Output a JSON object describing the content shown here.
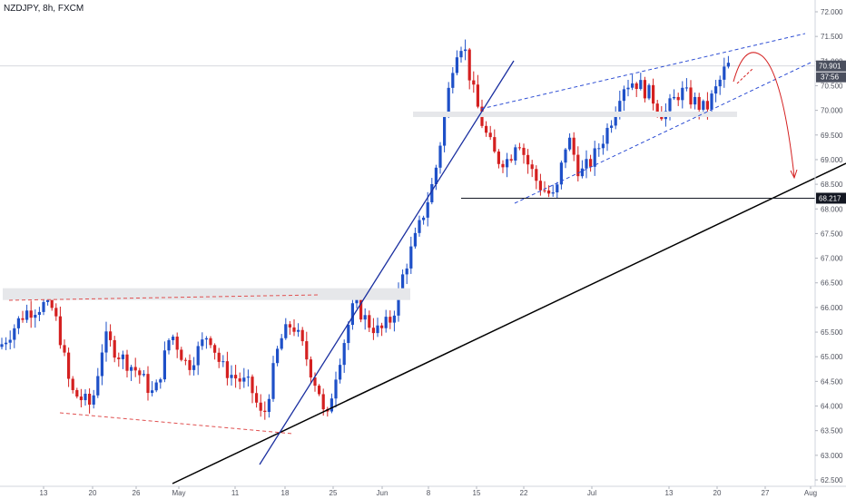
{
  "chart_data": {
    "type": "candlestick",
    "title": "NZDJPY, 8h, FXCM",
    "symbol": "NZDJPY",
    "interval": "8h",
    "source": "FXCM",
    "ylim": [
      62.5,
      72.0
    ],
    "y_ticks": [
      "72.000",
      "71.500",
      "71.000",
      "70.500",
      "70.000",
      "69.500",
      "69.000",
      "68.500",
      "68.000",
      "67.500",
      "67.000",
      "66.500",
      "66.000",
      "65.500",
      "65.000",
      "64.500",
      "64.000",
      "63.500",
      "63.000",
      "62.500"
    ],
    "x_ticks": [
      "13",
      "20",
      "26",
      "May",
      "11",
      "18",
      "25",
      "Jun",
      "8",
      "15",
      "22",
      "Jul",
      "13",
      "20",
      "27",
      "Aug"
    ],
    "last_price": "70.901",
    "countdown": "37:56",
    "level_label": "68.217",
    "level_value": 68.217,
    "colors": {
      "up": "#1e50c8",
      "down": "#d42020",
      "grid": "#ebecef",
      "axis_text": "#50535e"
    },
    "price_path": [
      [
        0,
        65.2
      ],
      [
        6,
        65.9
      ],
      [
        12,
        66.1
      ],
      [
        14,
        65.6
      ],
      [
        17,
        64.3
      ],
      [
        22,
        64.0
      ],
      [
        25,
        65.4
      ],
      [
        29,
        65.0
      ],
      [
        33,
        64.7
      ],
      [
        37,
        64.2
      ],
      [
        41,
        65.5
      ],
      [
        45,
        64.8
      ],
      [
        48,
        65.2
      ],
      [
        50,
        65.5
      ],
      [
        53,
        64.8
      ],
      [
        56,
        64.6
      ],
      [
        60,
        64.4
      ],
      [
        63,
        63.7
      ],
      [
        67,
        65.3
      ],
      [
        70,
        65.7
      ],
      [
        73,
        65.1
      ],
      [
        75,
        64.6
      ],
      [
        77,
        64.2
      ],
      [
        78,
        63.5
      ],
      [
        80,
        64.5
      ],
      [
        83,
        65.5
      ],
      [
        85,
        66.1
      ],
      [
        88,
        65.7
      ],
      [
        91,
        65.5
      ],
      [
        94,
        65.8
      ],
      [
        97,
        66.8
      ],
      [
        100,
        67.5
      ],
      [
        104,
        68.6
      ],
      [
        106,
        69.6
      ],
      [
        109,
        71.2
      ],
      [
        111,
        71.4
      ],
      [
        113,
        70.5
      ],
      [
        116,
        69.6
      ],
      [
        119,
        69.0
      ],
      [
        122,
        69.0
      ],
      [
        124,
        69.5
      ],
      [
        126,
        69.0
      ],
      [
        129,
        68.5
      ],
      [
        133,
        68.2
      ],
      [
        136,
        69.5
      ],
      [
        139,
        68.7
      ],
      [
        142,
        69.0
      ],
      [
        146,
        69.7
      ],
      [
        149,
        70.5
      ],
      [
        152,
        70.6
      ],
      [
        156,
        70.3
      ],
      [
        159,
        69.9
      ],
      [
        163,
        70.4
      ],
      [
        166,
        70.2
      ],
      [
        169,
        70.0
      ],
      [
        172,
        70.5
      ],
      [
        174,
        70.9
      ]
    ],
    "price_path_note": "",
    "annotations": {
      "resistance_zone_1": [
        66.15,
        66.28
      ],
      "resistance_zone_2": [
        69.86,
        69.92
      ]
    }
  }
}
